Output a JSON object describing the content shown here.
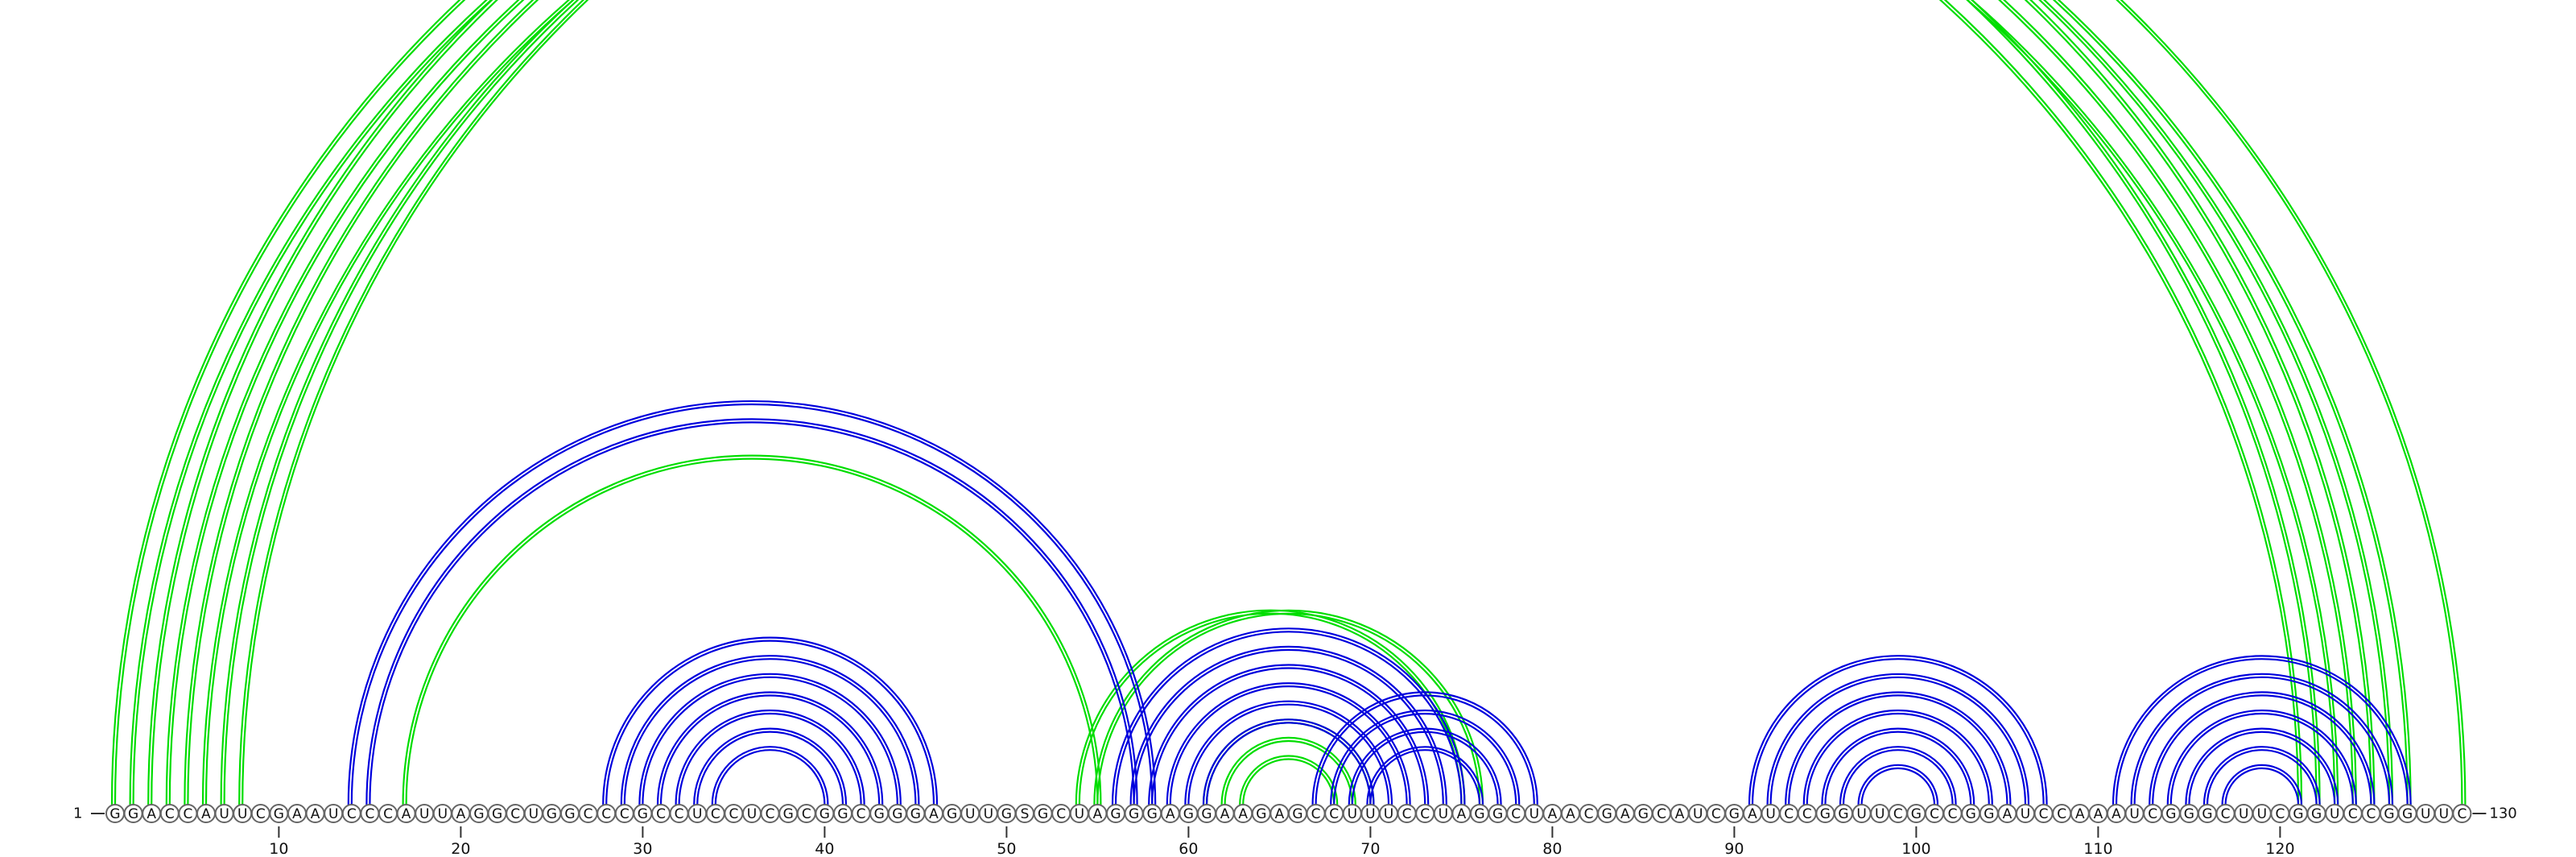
{
  "sequence": "GGACCAUUCGAAUCCCAUUAGGCUGGCCCGCCUCCUCGCGGCGGGAGUUGSGCUAGGGAGGAAGAGCCUUUCCUAGGCUAACGAGCAUCGAUCCGGUUCGCCGGAUCCAAAUCGGGCUUCGGUCCGGUUC",
  "labels": {
    "start": "1",
    "end": "130"
  },
  "ticks": [
    "10",
    "20",
    "30",
    "40",
    "50",
    "60",
    "70",
    "80",
    "90",
    "100",
    "110",
    "120"
  ],
  "colors": {
    "structure_a": "#0000dd",
    "structure_b": "#00dd00"
  },
  "arcs_blue": [
    [
      14,
      58
    ],
    [
      15,
      57
    ],
    [
      28,
      46
    ],
    [
      29,
      45
    ],
    [
      30,
      44
    ],
    [
      31,
      43
    ],
    [
      32,
      42
    ],
    [
      33,
      41
    ],
    [
      34,
      40
    ],
    [
      56,
      75
    ],
    [
      57,
      74
    ],
    [
      58,
      73
    ],
    [
      59,
      72
    ],
    [
      60,
      71
    ],
    [
      61,
      70
    ],
    [
      67,
      79
    ],
    [
      68,
      78
    ],
    [
      69,
      77
    ],
    [
      70,
      76
    ],
    [
      91,
      107
    ],
    [
      92,
      106
    ],
    [
      93,
      105
    ],
    [
      94,
      104
    ],
    [
      95,
      103
    ],
    [
      96,
      102
    ],
    [
      97,
      101
    ],
    [
      111,
      127
    ],
    [
      112,
      126
    ],
    [
      113,
      125
    ],
    [
      114,
      124
    ],
    [
      115,
      123
    ],
    [
      116,
      122
    ],
    [
      117,
      121
    ]
  ],
  "arcs_green": [
    [
      1,
      122
    ],
    [
      2,
      121
    ],
    [
      3,
      125
    ],
    [
      4,
      124
    ],
    [
      5,
      126
    ],
    [
      6,
      123
    ],
    [
      7,
      127
    ],
    [
      8,
      130
    ],
    [
      17,
      55
    ],
    [
      54,
      75
    ],
    [
      55,
      76
    ],
    [
      61,
      70
    ],
    [
      62,
      69
    ],
    [
      63,
      68
    ]
  ]
}
